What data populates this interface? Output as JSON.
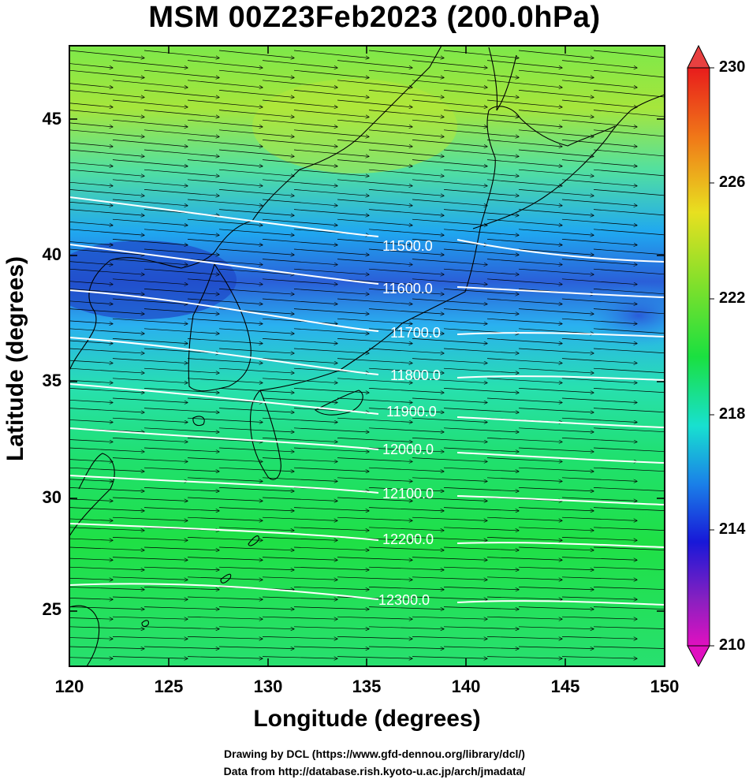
{
  "title": "MSM 00Z23Feb2023 (200.0hPa)",
  "xlabel": "Longitude (degrees)",
  "ylabel": "Latitude  (degrees)",
  "credits": [
    "Drawing by DCL (https://www.gfd-dennou.org/library/dcl/)",
    "Data from http://database.rish.kyoto-u.ac.jp/arch/jmadata/"
  ],
  "x_ticks": [
    "120",
    "125",
    "130",
    "135",
    "140",
    "145",
    "150"
  ],
  "y_ticks": [
    "25",
    "30",
    "35",
    "40",
    "45"
  ],
  "colorbar_ticks": [
    "230",
    "226",
    "222",
    "218",
    "214",
    "210"
  ],
  "contour_labels": [
    "11500.0",
    "11600.0",
    "11700.0",
    "11800.0",
    "11900.0",
    "12000.0",
    "12100.0",
    "12200.0",
    "12300.0"
  ],
  "colors": {
    "field_warm": "#b7e93c",
    "field_mid": "#1fe03a",
    "field_cold": "#1a5bd6",
    "contour": "#ffffff"
  }
}
